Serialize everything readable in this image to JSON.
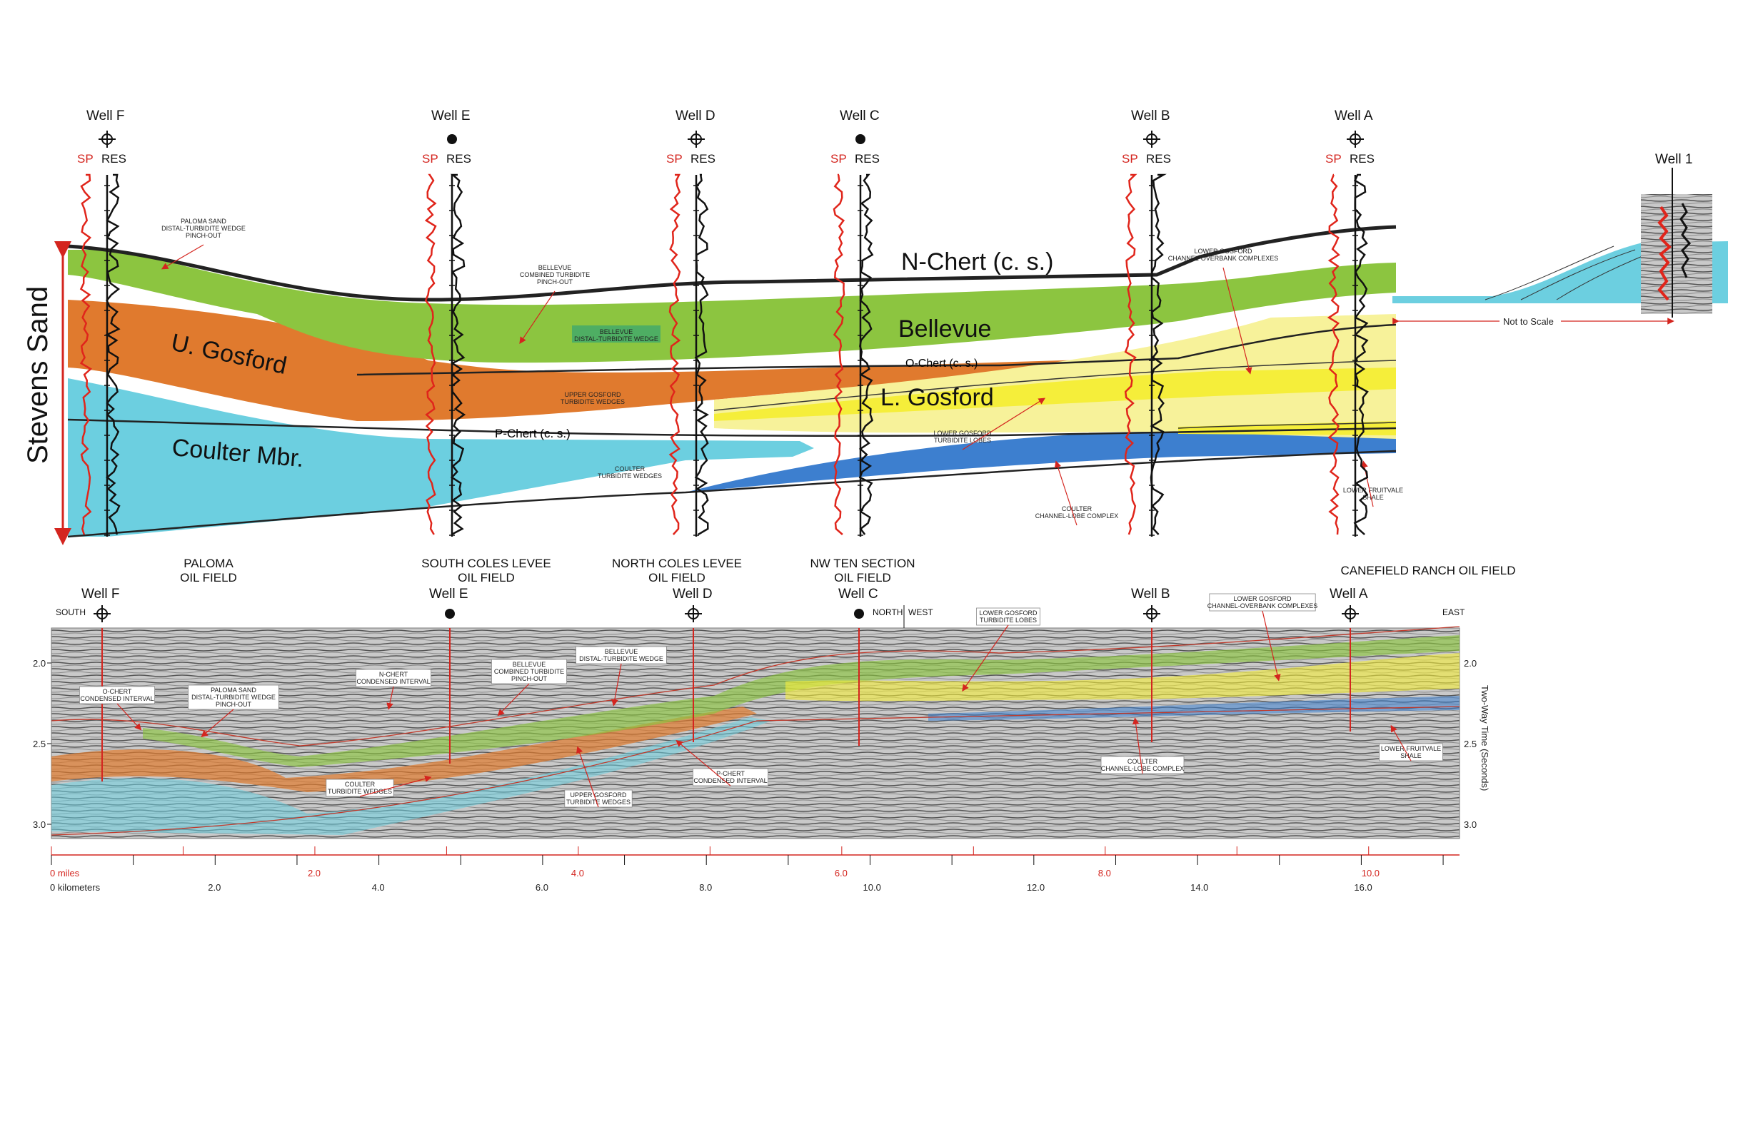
{
  "cross_section": {
    "wells": [
      {
        "name": "Well F",
        "sp": "SP",
        "res": "RES",
        "symbol": "circle-cross"
      },
      {
        "name": "Well E",
        "sp": "SP",
        "res": "RES",
        "symbol": "dot"
      },
      {
        "name": "Well D",
        "sp": "SP",
        "res": "RES",
        "symbol": "circle-cross"
      },
      {
        "name": "Well C",
        "sp": "SP",
        "res": "RES",
        "symbol": "dot"
      },
      {
        "name": "Well B",
        "sp": "SP",
        "res": "RES",
        "symbol": "circle-cross"
      },
      {
        "name": "Well A",
        "sp": "SP",
        "res": "RES",
        "symbol": "circle-cross"
      }
    ],
    "well1": "Well 1",
    "not_to_scale": "Not to Scale",
    "vertical_label": "Stevens Sand",
    "units": {
      "n_chert": "N-Chert (c. s.)",
      "bellevue": "Bellevue",
      "u_gosford": "U. Gosford",
      "o_chert": "O-Chert (c. s.)",
      "l_gosford": "L. Gosford",
      "p_chert": "P-Chert (c. s.)",
      "coulter": "Coulter Mbr."
    },
    "notes": {
      "paloma": [
        "PALOMA SAND",
        "DISTAL-TURBIDITE WEDGE",
        "PINCH-OUT"
      ],
      "bellevue_combined": [
        "BELLEVUE",
        "COMBINED TURBIDITE",
        "PINCH-OUT"
      ],
      "bellevue_distal": [
        "BELLEVUE",
        "DISTAL-TURBIDITE WEDGE"
      ],
      "upper_gosford": [
        "UPPER GOSFORD",
        "TURBIDITE WEDGES"
      ],
      "coulter_wedges": [
        "COULTER",
        "TURBIDITE WEDGES"
      ],
      "lower_gosford_lobes": [
        "LOWER GOSFORD",
        "TURBIDITE LOBES"
      ],
      "lower_gosford_complex": [
        "LOWER GOSFORD",
        "CHANNEL-OVERBANK COMPLEXES"
      ],
      "coulter_channel": [
        "COULTER",
        "CHANNEL-LOBE COMPLEX"
      ],
      "lower_fruitvale": [
        "LOWER FRUITVALE",
        "SHALE"
      ]
    }
  },
  "seismic": {
    "fields": [
      {
        "lines": [
          "PALOMA",
          "OIL FIELD"
        ]
      },
      {
        "lines": [
          "SOUTH COLES LEVEE",
          "OIL FIELD"
        ]
      },
      {
        "lines": [
          "NORTH COLES LEVEE",
          "OIL FIELD"
        ]
      },
      {
        "lines": [
          "NW TEN SECTION",
          "OIL FIELD"
        ]
      },
      {
        "lines": [
          "CANEFIELD RANCH OIL FIELD"
        ]
      }
    ],
    "wells": [
      "Well F",
      "Well E",
      "Well D",
      "Well C",
      "Well B",
      "Well A"
    ],
    "directions": {
      "south": "SOUTH",
      "north": "NORTH",
      "west": "WEST",
      "east": "EAST"
    },
    "time_ticks": [
      "2.0",
      "2.5",
      "3.0"
    ],
    "time_axis_label": "Two-Way Time (Seconds)",
    "labels": {
      "o_chert": [
        "O-CHERT",
        "CONDENSED INTERVAL"
      ],
      "paloma": [
        "PALOMA SAND",
        "DISTAL-TURBIDITE WEDGE",
        "PINCH-OUT"
      ],
      "n_chert": [
        "N-CHERT",
        "CONDENSED INTERVAL"
      ],
      "bellevue_combined": [
        "BELLEVUE",
        "COMBINED TURBIDITE",
        "PINCH-OUT"
      ],
      "bellevue_distal": [
        "BELLEVUE",
        "DISTAL-TURBIDITE WEDGE"
      ],
      "lower_gosford_lobes": [
        "LOWER GOSFORD",
        "TURBIDITE LOBES"
      ],
      "lower_gosford_complex": [
        "LOWER GOSFORD",
        "CHANNEL-OVERBANK COMPLEXES"
      ],
      "coulter_wedges": [
        "COULTER",
        "TURBIDITE WEDGES"
      ],
      "upper_gosford": [
        "UPPER GOSFORD",
        "TURBIDITE WEDGES"
      ],
      "p_chert": [
        "P-CHERT",
        "CONDENSED INTERVAL"
      ],
      "coulter_channel": [
        "COULTER",
        "CHANNEL-LOBE COMPLEX"
      ],
      "lower_fruitvale": [
        "LOWER FRUITVALE",
        "SHALE"
      ]
    }
  },
  "scale": {
    "miles": [
      "0 miles",
      "2.0",
      "4.0",
      "6.0",
      "8.0",
      "10.0"
    ],
    "km": [
      "0 kilometers",
      "2.0",
      "4.0",
      "6.0",
      "8.0",
      "10.0",
      "12.0",
      "14.0",
      "16.0"
    ]
  },
  "colors": {
    "bellevue": "#8cc540",
    "u_gosford": "#e07a2e",
    "coulter": "#6ccfe0",
    "l_gosford_light": "#f7f29a",
    "l_gosford": "#f5ee3a",
    "coulter_channel": "#3d7fcf",
    "sp_log": "#e0251b",
    "orange_light": "#f4a340"
  }
}
